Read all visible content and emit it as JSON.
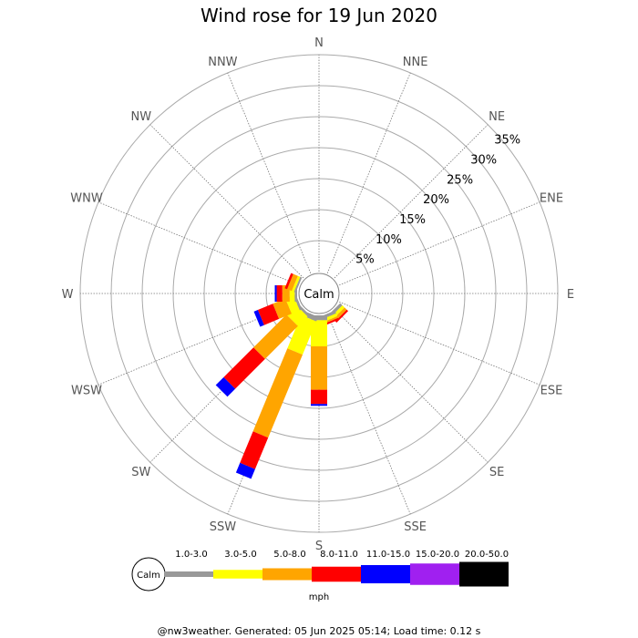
{
  "chart_data": {
    "type": "windrose",
    "title": "Wind rose for 19 Jun 2020",
    "directions": [
      "N",
      "NNE",
      "NE",
      "ENE",
      "E",
      "ESE",
      "SE",
      "SSE",
      "S",
      "SSW",
      "SW",
      "WSW",
      "W",
      "WNW",
      "NW",
      "NNW"
    ],
    "radial_ticks": [
      "5%",
      "10%",
      "15%",
      "20%",
      "25%",
      "30%",
      "35%"
    ],
    "radial_max": 35,
    "center_label": "Calm",
    "speed_bins": [
      {
        "label": "1.0-3.0",
        "color": "#999999"
      },
      {
        "label": "3.0-5.0",
        "color": "#ffff00"
      },
      {
        "label": "5.0-8.0",
        "color": "#ffa500"
      },
      {
        "label": "8.0-11.0",
        "color": "#ff0000"
      },
      {
        "label": "11.0-15.0",
        "color": "#0000ff"
      },
      {
        "label": "15.0-20.0",
        "color": "#a020f0"
      },
      {
        "label": "20.0-50.0",
        "color": "#000000"
      }
    ],
    "unit": "mph",
    "series": [
      {
        "direction": "N",
        "values": [
          0,
          0,
          0,
          0,
          0,
          0,
          0
        ]
      },
      {
        "direction": "NNE",
        "values": [
          0,
          0,
          0,
          0,
          0,
          0,
          0
        ]
      },
      {
        "direction": "NE",
        "values": [
          0,
          0,
          0,
          0,
          0,
          0,
          0
        ]
      },
      {
        "direction": "ENE",
        "values": [
          0,
          0,
          0,
          0,
          0,
          0,
          0
        ]
      },
      {
        "direction": "E",
        "values": [
          0,
          0,
          0,
          0,
          0,
          0,
          0
        ]
      },
      {
        "direction": "ESE",
        "values": [
          0,
          0,
          0,
          0,
          0,
          0,
          0
        ]
      },
      {
        "direction": "SE",
        "values": [
          0.5,
          0.5,
          0.5,
          0.3,
          0,
          0,
          0
        ]
      },
      {
        "direction": "SSE",
        "values": [
          0.5,
          0.5,
          0.3,
          0.3,
          0,
          0,
          0
        ]
      },
      {
        "direction": "S",
        "values": [
          0.8,
          4.2,
          7.0,
          2.3,
          0.3,
          0,
          0
        ]
      },
      {
        "direction": "SSW",
        "values": [
          0.8,
          5.8,
          14.5,
          5.5,
          1.7,
          0,
          0
        ]
      },
      {
        "direction": "SW",
        "values": [
          0.4,
          2.2,
          7.5,
          6.8,
          1.8,
          0,
          0
        ]
      },
      {
        "direction": "WSW",
        "values": [
          0.4,
          1.4,
          2.2,
          2.6,
          0.7,
          0,
          0
        ]
      },
      {
        "direction": "W",
        "values": [
          0.4,
          0.8,
          1.2,
          0.9,
          0.3,
          0,
          0
        ]
      },
      {
        "direction": "WNW",
        "values": [
          0.3,
          0.4,
          0.8,
          0.4,
          0,
          0,
          0
        ]
      },
      {
        "direction": "NW",
        "values": [
          0,
          0,
          0,
          0,
          0,
          0,
          0
        ]
      },
      {
        "direction": "NNW",
        "values": [
          0,
          0,
          0,
          0,
          0,
          0,
          0
        ]
      }
    ]
  },
  "footer": "@nw3weather. Generated: 05 Jun 2025 05:14; Load time: 0.12 s"
}
